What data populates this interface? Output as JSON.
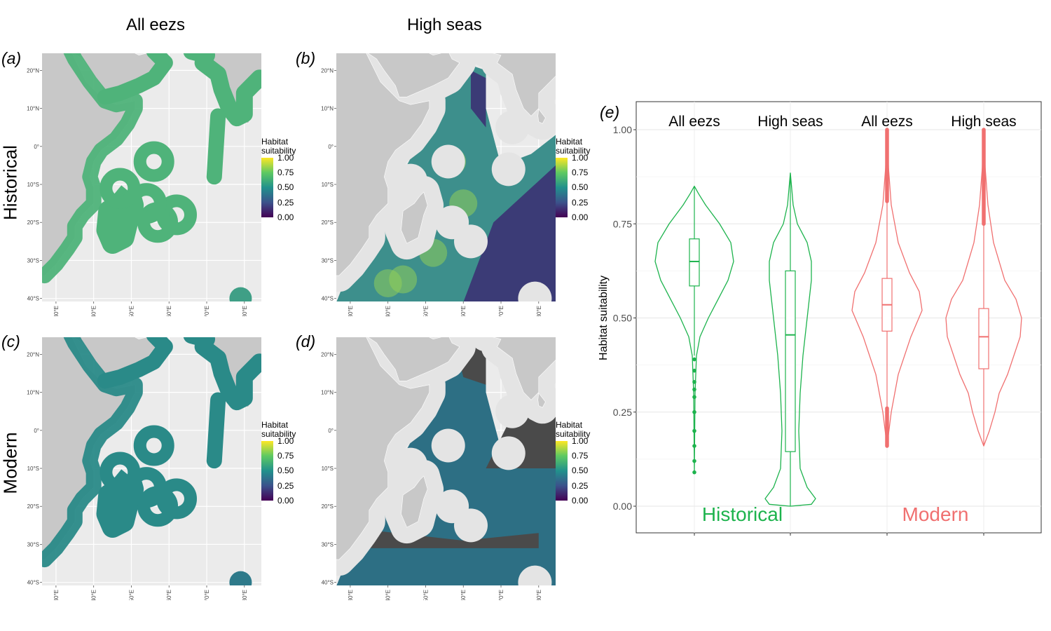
{
  "column_titles": [
    "All eezs",
    "High seas"
  ],
  "row_titles": [
    "Historical",
    "Modern"
  ],
  "maps": [
    {
      "letter": "(a)",
      "row": "Historical",
      "column": "All eezs"
    },
    {
      "letter": "(b)",
      "row": "Historical",
      "column": "High seas"
    },
    {
      "letter": "(c)",
      "row": "Modern",
      "column": "All eezs"
    },
    {
      "letter": "(d)",
      "row": "Modern",
      "column": "High seas"
    }
  ],
  "map_axes": {
    "lat_ticks": [
      "20°N",
      "10°N",
      "0°",
      "10°S",
      "20°S",
      "30°S",
      "40°S"
    ],
    "lon_ticks": [
      "30°E",
      "40°E",
      "50°E",
      "60°E",
      "70°E",
      "80°E"
    ]
  },
  "legend": {
    "title_line1": "Habitat",
    "title_line2": "suitability",
    "ticks": [
      "1.00",
      "0.75",
      "0.50",
      "0.25",
      "0.00"
    ],
    "colors": [
      "#fde725",
      "#5ec962",
      "#21918c",
      "#3b528b",
      "#440154"
    ]
  },
  "colors": {
    "land": "#c8c8c8",
    "ocean_bg": "#ebebeb",
    "nodata": "#4a4a4a",
    "historical": "#1db34d",
    "modern": "#f07070"
  },
  "chart_data": {
    "type": "violin",
    "panel_letter": "(e)",
    "title": "",
    "xlabel": "",
    "ylabel": "Habitat suitability",
    "ylim": [
      0,
      1
    ],
    "y_ticks": [
      "1.00",
      "0.75",
      "0.50",
      "0.25",
      "0.00"
    ],
    "categories": [
      "All eezs",
      "High seas",
      "All eezs",
      "High seas"
    ],
    "groups": [
      {
        "name": "Historical",
        "color": "#1db34d"
      },
      {
        "name": "Modern",
        "color": "#f07070"
      }
    ],
    "series": [
      {
        "group": "Historical",
        "category": "All eezs",
        "min": 0.09,
        "q1": 0.585,
        "median": 0.65,
        "q3": 0.71,
        "whisker_low": 0.4,
        "whisker_high": 0.85,
        "outliers_low": [
          0.39,
          0.36,
          0.33,
          0.31,
          0.29,
          0.25,
          0.2,
          0.16,
          0.12,
          0.09
        ]
      },
      {
        "group": "Historical",
        "category": "High seas",
        "min": 0.0,
        "q1": 0.145,
        "median": 0.455,
        "q3": 0.625,
        "whisker_low": 0.0,
        "whisker_high": 0.885,
        "outliers_low": []
      },
      {
        "group": "Modern",
        "category": "All eezs",
        "min": 0.16,
        "q1": 0.465,
        "median": 0.535,
        "q3": 0.605,
        "whisker_low": 0.26,
        "whisker_high": 0.81,
        "outlier_range_low": [
          0.16,
          0.26
        ],
        "outlier_range_high": [
          0.81,
          1.0
        ]
      },
      {
        "group": "Modern",
        "category": "High seas",
        "min": 0.16,
        "q1": 0.365,
        "median": 0.45,
        "q3": 0.525,
        "whisker_low": 0.16,
        "whisker_high": 0.75,
        "outlier_range_high": [
          0.75,
          1.0
        ]
      }
    ]
  }
}
